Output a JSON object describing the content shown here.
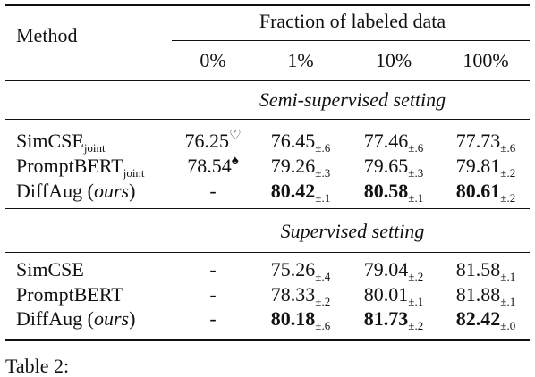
{
  "table": {
    "header": {
      "method": "Method",
      "group": "Fraction of labeled data",
      "columns": [
        "0%",
        "1%",
        "10%",
        "100%"
      ]
    },
    "sections": [
      {
        "title": "Semi-supervised setting",
        "rows": [
          {
            "method": [
              {
                "text": "SimCSE"
              },
              {
                "text": "joint",
                "sub": true
              }
            ],
            "cells": [
              {
                "value": "76.25",
                "sup": "♡"
              },
              {
                "value": "76.45",
                "sub": "±.6"
              },
              {
                "value": "77.46",
                "sub": "±.6"
              },
              {
                "value": "77.73",
                "sub": "±.6"
              }
            ]
          },
          {
            "method": [
              {
                "text": "PromptBERT"
              },
              {
                "text": "joint",
                "sub": true
              }
            ],
            "cells": [
              {
                "value": "78.54",
                "sup": "♠"
              },
              {
                "value": "79.26",
                "sub": "±.3"
              },
              {
                "value": "79.65",
                "sub": "±.3"
              },
              {
                "value": "79.81",
                "sub": "±.2"
              }
            ]
          },
          {
            "method": [
              {
                "text": "DiffAug ("
              },
              {
                "text": "ours",
                "italic": true
              },
              {
                "text": ")"
              }
            ],
            "cells": [
              {
                "value": "-"
              },
              {
                "value": "80.42",
                "sub": "±.1",
                "bold": true
              },
              {
                "value": "80.58",
                "sub": "±.1",
                "bold": true
              },
              {
                "value": "80.61",
                "sub": "±.2",
                "bold": true
              }
            ]
          }
        ]
      },
      {
        "title": "Supervised setting",
        "rows": [
          {
            "method": [
              {
                "text": "SimCSE"
              }
            ],
            "cells": [
              {
                "value": "-"
              },
              {
                "value": "75.26",
                "sub": "±.4"
              },
              {
                "value": "79.04",
                "sub": "±.2"
              },
              {
                "value": "81.58",
                "sub": "±.1"
              }
            ]
          },
          {
            "method": [
              {
                "text": "PromptBERT"
              }
            ],
            "cells": [
              {
                "value": "-"
              },
              {
                "value": "78.33",
                "sub": "±.2"
              },
              {
                "value": "80.01",
                "sub": "±.1"
              },
              {
                "value": "81.88",
                "sub": "±.1"
              }
            ]
          },
          {
            "method": [
              {
                "text": "DiffAug ("
              },
              {
                "text": "ours",
                "italic": true
              },
              {
                "text": ")"
              }
            ],
            "cells": [
              {
                "value": "-"
              },
              {
                "value": "80.18",
                "sub": "±.6",
                "bold": true
              },
              {
                "value": "81.73",
                "sub": "±.2",
                "bold": true
              },
              {
                "value": "82.42",
                "sub": "±.0",
                "bold": true
              }
            ]
          }
        ]
      }
    ],
    "caption": "Table 2:"
  }
}
